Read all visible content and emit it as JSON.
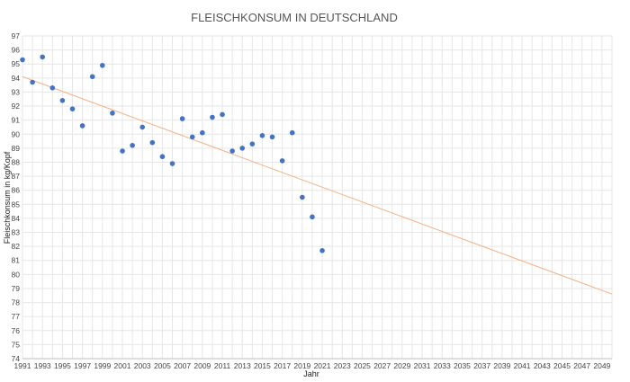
{
  "chart_data": {
    "type": "scatter",
    "title": "FLEISCHKONSUM IN DEUTSCHLAND",
    "xlabel": "Jahr",
    "ylabel": "Fleischkonsum in kg/Kopf",
    "xlim": [
      1991,
      2050
    ],
    "ylim": [
      74,
      97
    ],
    "x_ticks": [
      "1991",
      "1993",
      "1995",
      "1997",
      "1999",
      "2001",
      "2003",
      "2005",
      "2007",
      "2009",
      "2011",
      "2013",
      "2015",
      "2017",
      "2019",
      "2021",
      "2023",
      "2025",
      "2027",
      "2029",
      "2031",
      "2033",
      "2035",
      "2037",
      "2039",
      "2041",
      "2043",
      "2045",
      "2047",
      "2049"
    ],
    "y_ticks": [
      "74",
      "75",
      "76",
      "77",
      "78",
      "79",
      "80",
      "81",
      "82",
      "83",
      "84",
      "85",
      "86",
      "87",
      "88",
      "89",
      "90",
      "91",
      "92",
      "93",
      "94",
      "95",
      "96",
      "97"
    ],
    "grid": true,
    "legend": "none",
    "series": [
      {
        "x": [
          1991,
          1992,
          1993,
          1994,
          1995,
          1996,
          1997,
          1998,
          1999,
          2000,
          2001,
          2002,
          2003,
          2004,
          2005,
          2006,
          2007,
          2008,
          2009,
          2010,
          2011,
          2012,
          2013,
          2014,
          2015,
          2016,
          2017,
          2018,
          2019,
          2020,
          2021
        ],
        "y": [
          95.3,
          93.7,
          95.5,
          93.3,
          92.4,
          91.8,
          90.6,
          94.1,
          94.9,
          91.5,
          88.8,
          89.2,
          90.5,
          89.4,
          88.4,
          87.9,
          91.1,
          89.8,
          90.1,
          91.2,
          91.4,
          88.8,
          89.0,
          89.3,
          89.9,
          89.8,
          88.1,
          90.1,
          85.5,
          84.1,
          81.7
        ],
        "color": "#4472c4"
      }
    ],
    "trendline": {
      "type": "linear",
      "x": [
        1991,
        2050
      ],
      "y": [
        94.1,
        78.6
      ],
      "color": "#f4b183"
    }
  }
}
